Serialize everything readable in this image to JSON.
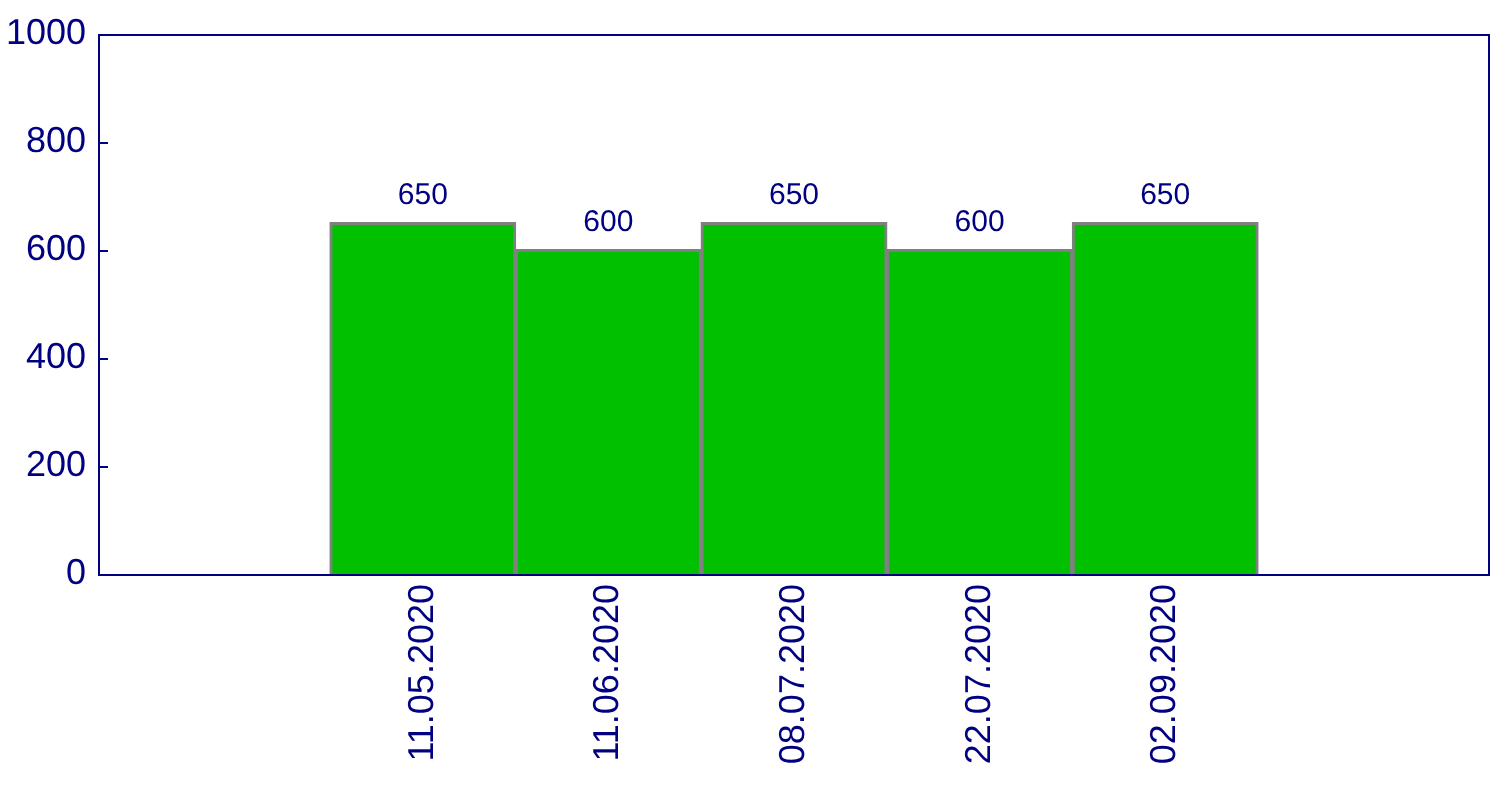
{
  "chart_data": {
    "type": "bar",
    "categories": [
      "11.05.2020",
      "11.06.2020",
      "08.07.2020",
      "22.07.2020",
      "02.09.2020"
    ],
    "values": [
      650,
      600,
      650,
      600,
      650
    ],
    "color": "#00c000",
    "ylim": [
      0,
      1000
    ],
    "yticks": [
      0,
      200,
      400,
      600,
      800,
      1000
    ],
    "data_labels": true
  }
}
